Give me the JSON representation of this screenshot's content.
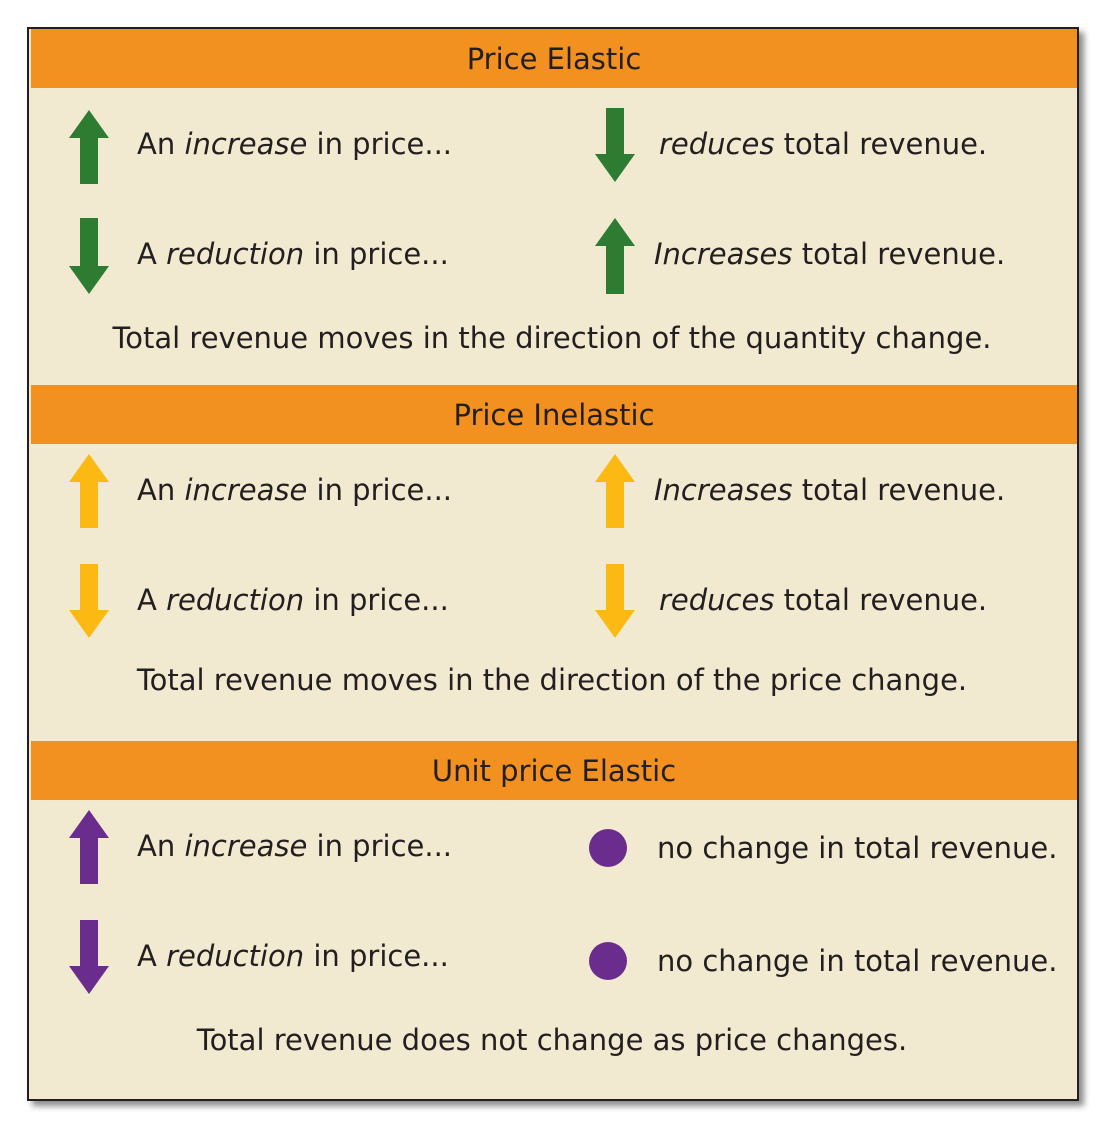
{
  "colors": {
    "band": "#f39120",
    "panel": "#f1ead0",
    "elastic_arrow": "#2d7c32",
    "inelastic_arrow": "#fdb913",
    "unit_arrow": "#6a2c8d",
    "unit_dot": "#6a2c8d"
  },
  "sections": [
    {
      "title": "Price Elastic",
      "rows": [
        {
          "left_arrow": "up-arrow-icon",
          "left": {
            "pre": "An ",
            "em": "increase",
            "post": " in price..."
          },
          "right_marker": "down-arrow-icon",
          "right": {
            "pre": "",
            "em": "reduces",
            "post": " total revenue."
          }
        },
        {
          "left_arrow": "down-arrow-icon",
          "left": {
            "pre": "A ",
            "em": "reduction",
            "post": " in price..."
          },
          "right_marker": "up-arrow-icon",
          "right": {
            "pre": "",
            "em": "Increases",
            "post": " total revenue."
          }
        }
      ],
      "summary": "Total revenue moves in the direction of the quantity change."
    },
    {
      "title": "Price Inelastic",
      "rows": [
        {
          "left_arrow": "up-arrow-icon",
          "left": {
            "pre": "An ",
            "em": "increase",
            "post": " in price..."
          },
          "right_marker": "up-arrow-icon",
          "right": {
            "pre": "",
            "em": "Increases",
            "post": " total revenue."
          }
        },
        {
          "left_arrow": "down-arrow-icon",
          "left": {
            "pre": "A ",
            "em": "reduction",
            "post": " in price..."
          },
          "right_marker": "down-arrow-icon",
          "right": {
            "pre": "",
            "em": "reduces",
            "post": " total revenue."
          }
        }
      ],
      "summary": "Total revenue moves in the direction of the price change."
    },
    {
      "title": "Unit price Elastic",
      "rows": [
        {
          "left_arrow": "up-arrow-icon",
          "left": {
            "pre": "An ",
            "em": "increase",
            "post": " in price..."
          },
          "right_marker": "dot-icon",
          "right": {
            "pre": "",
            "em": "",
            "post": "no change in total revenue."
          }
        },
        {
          "left_arrow": "down-arrow-icon",
          "left": {
            "pre": "A ",
            "em": "reduction",
            "post": " in price..."
          },
          "right_marker": "dot-icon",
          "right": {
            "pre": "",
            "em": "",
            "post": "no change in total revenue."
          }
        }
      ],
      "summary": "Total revenue does not change as price changes."
    }
  ]
}
